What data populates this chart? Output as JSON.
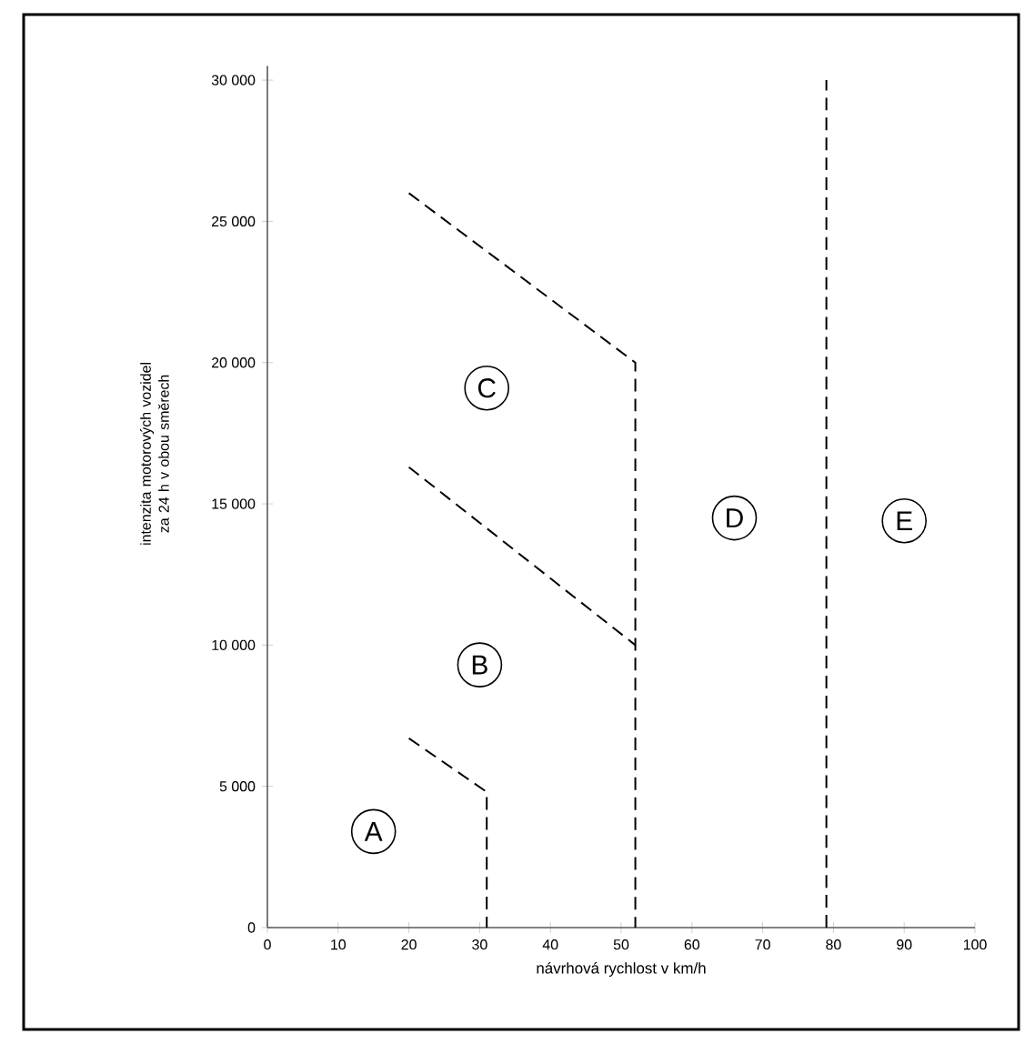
{
  "chart_data": {
    "type": "line",
    "xlabel": "návrhová rychlost v km/h",
    "ylabel": "intenzita motorových vozidel za 24 h v obou směrech",
    "xlim": [
      0,
      100
    ],
    "ylim": [
      0,
      30500
    ],
    "xticks": [
      0,
      10,
      20,
      30,
      40,
      50,
      60,
      70,
      80,
      90,
      100
    ],
    "yticks": [
      {
        "value": 0,
        "label": "0"
      },
      {
        "value": 5000,
        "label": "5 000"
      },
      {
        "value": 10000,
        "label": "10 000"
      },
      {
        "value": 15000,
        "label": "15 000"
      },
      {
        "value": 20000,
        "label": "20 000"
      },
      {
        "value": 25000,
        "label": "25 000"
      },
      {
        "value": 30000,
        "label": "30 000"
      }
    ],
    "series": [
      {
        "color": "#000000",
        "x": [
          20,
          31,
          31
        ],
        "values": [
          6700,
          4800,
          0
        ]
      },
      {
        "color": "#000000",
        "x": [
          20,
          52
        ],
        "values": [
          16300,
          10000
        ]
      },
      {
        "color": "#000000",
        "x": [
          20,
          52,
          52
        ],
        "values": [
          26000,
          20000,
          0
        ]
      },
      {
        "color": "#000000",
        "x": [
          79,
          79
        ],
        "values": [
          0,
          30000
        ]
      }
    ],
    "line_style": "dashed",
    "marker": "none",
    "grid": false,
    "annotations": [
      {
        "text": "A",
        "x": 15,
        "y": 3400
      },
      {
        "text": "B",
        "x": 30,
        "y": 9300
      },
      {
        "text": "C",
        "x": 31,
        "y": 19100
      },
      {
        "text": "D",
        "x": 66,
        "y": 14500
      },
      {
        "text": "E",
        "x": 90,
        "y": 14400
      }
    ]
  }
}
